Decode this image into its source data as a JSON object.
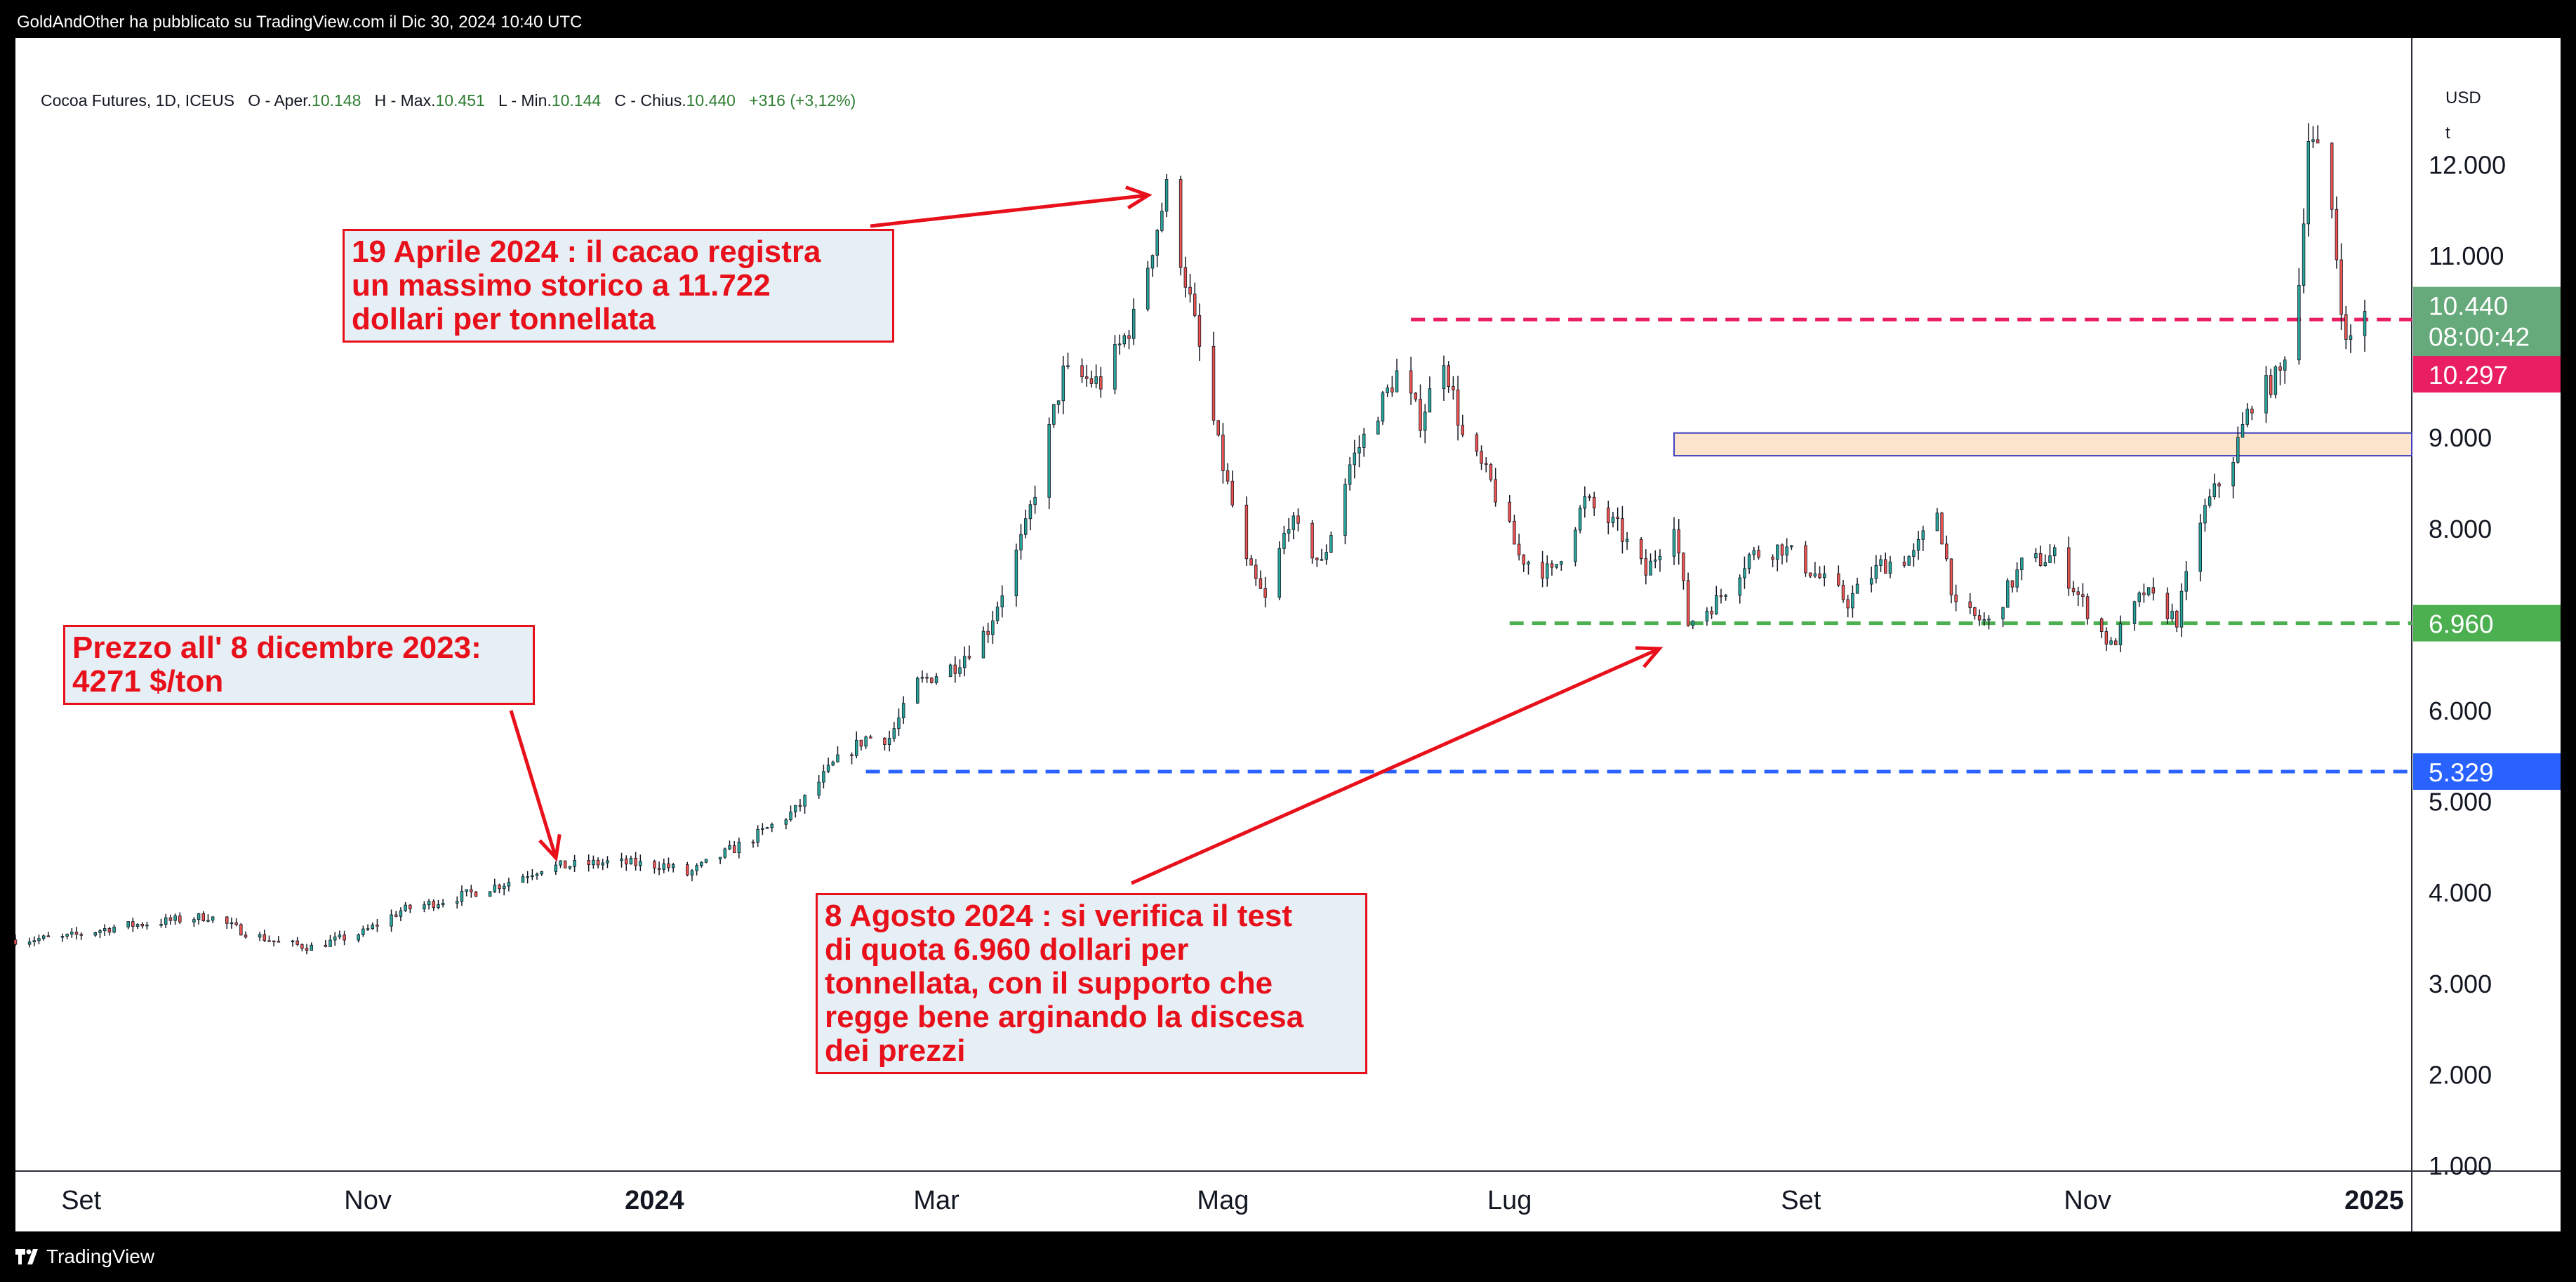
{
  "header": {
    "publisher_line": "GoldAndOther ha pubblicato su TradingView.com il Dic 30, 2024 10:40 UTC"
  },
  "legend": {
    "symbol": "Cocoa Futures, 1D, ICEUS",
    "open_label": "O - Aper.",
    "open": "10.148",
    "high_label": "H - Max.",
    "high": "10.451",
    "low_label": "L - Min.",
    "low": "10.144",
    "close_label": "C - Chius.",
    "close": "10.440",
    "change": "+316 (+3,12%)"
  },
  "axis": {
    "currency": "USD",
    "unit": "t"
  },
  "price_tags": {
    "last_price": "10.440",
    "countdown": "08:00:42",
    "resistance": "10.297",
    "support": "6.960",
    "base": "5.329"
  },
  "annotations": {
    "high": "19 Aprile 2024 : il cacao registra\nun massimo storico a 11.722\ndollari per tonnellata",
    "start": "Prezzo all' 8 dicembre 2023:\n4271 $/ton",
    "test": "8 Agosto 2024 : si verifica il test\ndi quota 6.960 dollari per\ntonnellata, con il supporto che\nregge bene arginando la discesa\ndei prezzi"
  },
  "footer": {
    "brand": "TradingView"
  },
  "colors": {
    "up": "#26a69a",
    "down": "#ef5350",
    "resistance": "#e91e63",
    "support": "#4caf50",
    "base": "#2962ff",
    "annotation": "#e8101a",
    "zone_fill": "#fde4cc",
    "zone_border": "#3f3fbf"
  },
  "chart_data": {
    "type": "candlestick",
    "title": "Cocoa Futures, 1D, ICEUS",
    "ylabel": "USD",
    "ylim": [
      1000,
      13000
    ],
    "y_ticks": [
      "1.000",
      "2.000",
      "3.000",
      "4.000",
      "5.000",
      "6.000",
      "8.000",
      "9.000",
      "11.000",
      "12.000"
    ],
    "x_ticks": [
      {
        "label": "Set",
        "date": "2023-09-01"
      },
      {
        "label": "Nov",
        "date": "2023-11-01"
      },
      {
        "label": "2024",
        "date": "2024-01-01"
      },
      {
        "label": "Mar",
        "date": "2024-03-01"
      },
      {
        "label": "Mag",
        "date": "2024-05-01"
      },
      {
        "label": "Lug",
        "date": "2024-07-01"
      },
      {
        "label": "Set",
        "date": "2024-09-01"
      },
      {
        "label": "Nov",
        "date": "2024-11-01"
      },
      {
        "label": "2025",
        "date": "2025-01-01"
      }
    ],
    "x_range": [
      "2023-08-18",
      "2025-01-09"
    ],
    "price_path": [
      [
        "2023-08-18",
        3480
      ],
      [
        "2023-08-28",
        3500
      ],
      [
        "2023-09-08",
        3620
      ],
      [
        "2023-09-20",
        3690
      ],
      [
        "2023-09-28",
        3740
      ],
      [
        "2023-10-06",
        3560
      ],
      [
        "2023-10-13",
        3450
      ],
      [
        "2023-10-20",
        3400
      ],
      [
        "2023-10-31",
        3560
      ],
      [
        "2023-11-08",
        3800
      ],
      [
        "2023-11-20",
        3950
      ],
      [
        "2023-11-30",
        4100
      ],
      [
        "2023-12-08",
        4271
      ],
      [
        "2023-12-15",
        4300
      ],
      [
        "2023-12-22",
        4330
      ],
      [
        "2024-01-03",
        4300
      ],
      [
        "2024-01-08",
        4200
      ],
      [
        "2024-01-15",
        4400
      ],
      [
        "2024-01-22",
        4600
      ],
      [
        "2024-01-31",
        4900
      ],
      [
        "2024-02-08",
        5400
      ],
      [
        "2024-02-15",
        5700
      ],
      [
        "2024-02-20",
        5700
      ],
      [
        "2024-02-26",
        6300
      ],
      [
        "2024-03-05",
        6500
      ],
      [
        "2024-03-12",
        6900
      ],
      [
        "2024-03-20",
        8000
      ],
      [
        "2024-03-28",
        9700
      ],
      [
        "2024-04-05",
        9600
      ],
      [
        "2024-04-12",
        10300
      ],
      [
        "2024-04-19",
        11722
      ],
      [
        "2024-04-24",
        10500
      ],
      [
        "2024-04-30",
        8900
      ],
      [
        "2024-05-06",
        7600
      ],
      [
        "2024-05-10",
        7200
      ],
      [
        "2024-05-15",
        8100
      ],
      [
        "2024-05-22",
        7600
      ],
      [
        "2024-05-28",
        8700
      ],
      [
        "2024-06-03",
        9300
      ],
      [
        "2024-06-07",
        9700
      ],
      [
        "2024-06-12",
        9200
      ],
      [
        "2024-06-17",
        9900
      ],
      [
        "2024-06-21",
        9000
      ],
      [
        "2024-06-27",
        8500
      ],
      [
        "2024-07-03",
        7700
      ],
      [
        "2024-07-10",
        7500
      ],
      [
        "2024-07-17",
        8300
      ],
      [
        "2024-07-24",
        8000
      ],
      [
        "2024-07-30",
        7500
      ],
      [
        "2024-08-05",
        8100
      ],
      [
        "2024-08-08",
        6960
      ],
      [
        "2024-08-14",
        7200
      ],
      [
        "2024-08-21",
        7700
      ],
      [
        "2024-08-28",
        7800
      ],
      [
        "2024-09-04",
        7500
      ],
      [
        "2024-09-11",
        7200
      ],
      [
        "2024-09-18",
        7600
      ],
      [
        "2024-09-25",
        7700
      ],
      [
        "2024-09-30",
        8200
      ],
      [
        "2024-10-04",
        7100
      ],
      [
        "2024-10-11",
        6960
      ],
      [
        "2024-10-18",
        7600
      ],
      [
        "2024-10-25",
        7700
      ],
      [
        "2024-11-01",
        7100
      ],
      [
        "2024-11-06",
        6700
      ],
      [
        "2024-11-13",
        7300
      ],
      [
        "2024-11-20",
        7000
      ],
      [
        "2024-11-25",
        8100
      ],
      [
        "2024-12-02",
        8800
      ],
      [
        "2024-12-06",
        9400
      ],
      [
        "2024-12-12",
        9700
      ],
      [
        "2024-12-16",
        10700
      ],
      [
        "2024-12-18",
        12300
      ],
      [
        "2024-12-20",
        12100
      ],
      [
        "2024-12-23",
        11500
      ],
      [
        "2024-12-26",
        10000
      ],
      [
        "2024-12-30",
        10440
      ]
    ],
    "levels": [
      {
        "type": "resistance",
        "price": 10297,
        "from": "2024-06-10",
        "to": "2025-01-09"
      },
      {
        "type": "support",
        "price": 6960,
        "from": "2024-07-01",
        "to": "2025-01-09"
      },
      {
        "type": "base",
        "price": 5329,
        "from": "2024-02-15",
        "to": "2025-01-09"
      }
    ],
    "zone": {
      "from": "2024-08-05",
      "to": "2025-01-09",
      "low": 8800,
      "high": 9050
    }
  }
}
